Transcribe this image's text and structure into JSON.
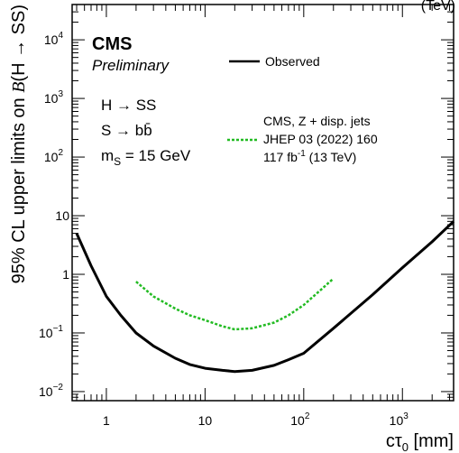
{
  "chart_data": {
    "type": "line",
    "xscale": "log",
    "yscale": "log",
    "xlim": [
      0.45,
      3300
    ],
    "ylim": [
      0.007,
      40000
    ],
    "xlabel_main": "cτ",
    "xlabel_sub": "0",
    "xlabel_unit": " [mm]",
    "ylabel_pre": "95% CL upper limits on ",
    "ylabel_b": "B",
    "ylabel_post": "(H → SS)",
    "x_ticks": [
      {
        "value": 1,
        "base": "1",
        "exp": ""
      },
      {
        "value": 10,
        "base": "10",
        "exp": ""
      },
      {
        "value": 100,
        "base": "10",
        "exp": "2"
      },
      {
        "value": 1000,
        "base": "10",
        "exp": "3"
      }
    ],
    "y_ticks": [
      {
        "value": 0.01,
        "base": "10",
        "exp": "−2"
      },
      {
        "value": 0.1,
        "base": "10",
        "exp": "−1"
      },
      {
        "value": 1,
        "base": "1",
        "exp": ""
      },
      {
        "value": 10,
        "base": "10",
        "exp": ""
      },
      {
        "value": 100,
        "base": "10",
        "exp": "2"
      },
      {
        "value": 1000,
        "base": "10",
        "exp": "3"
      },
      {
        "value": 10000,
        "base": "10",
        "exp": "4"
      }
    ],
    "top_label_fragment": "(TeV)",
    "cms_label": "CMS",
    "preliminary_label": "Preliminary",
    "process_lines": [
      "H → SS",
      "S → bb̄"
    ],
    "mass_label": {
      "main": "m",
      "sub": "S",
      "rest": " = 15 GeV"
    },
    "series": [
      {
        "name": "Observed",
        "color": "#000000",
        "style": "solid",
        "x": [
          0.5,
          0.7,
          1.0,
          1.4,
          2.0,
          3.0,
          5.0,
          7.0,
          10,
          15,
          20,
          30,
          50,
          70,
          100,
          200,
          500,
          1000,
          2000,
          3300
        ],
        "y": [
          5.0,
          1.4,
          0.42,
          0.2,
          0.1,
          0.06,
          0.037,
          0.029,
          0.025,
          0.023,
          0.022,
          0.023,
          0.028,
          0.035,
          0.045,
          0.12,
          0.45,
          1.3,
          3.6,
          8.0
        ]
      },
      {
        "name": "CMS, Z + disp. jets",
        "legend_lines": [
          "CMS, Z + disp. jets",
          "JHEP 03 (2022) 160"
        ],
        "lumi": {
          "pre": "117 fb",
          "exp": "-1",
          "post": " (13 TeV)"
        },
        "color": "#22bb22",
        "style": "dashed",
        "x": [
          2,
          3,
          5,
          7,
          10,
          15,
          20,
          30,
          50,
          70,
          100,
          150,
          200
        ],
        "y": [
          0.75,
          0.42,
          0.26,
          0.2,
          0.165,
          0.13,
          0.115,
          0.12,
          0.15,
          0.2,
          0.3,
          0.55,
          0.85
        ]
      }
    ]
  }
}
